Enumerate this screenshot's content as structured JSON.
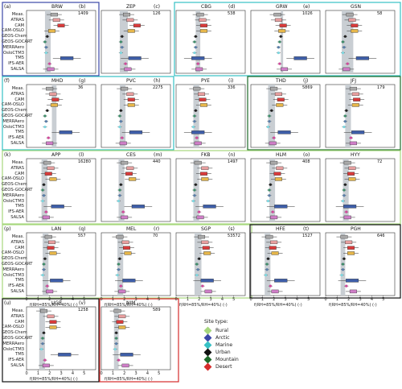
{
  "chart_data": {
    "type": "boxplot",
    "xlabel": "f(RH=85%/RH=40%)  (-)",
    "xlim": [
      0,
      6
    ],
    "xticks": [
      0,
      1,
      2,
      3,
      4,
      5
    ],
    "models": [
      "Meas.",
      "ATRAS",
      "CAM",
      "CAM-OSLO",
      "GEOS-Chem",
      "GEOS-GOCART",
      "MERRAero",
      "OsloCTM3",
      "TM5",
      "IFS-AER",
      "SALSA"
    ],
    "model_colors": [
      "#aaaaaa",
      "#e89f9f",
      "#d93b3b",
      "#e6b64a",
      "#222222",
      "#3f8c6a",
      "#5a7ea8",
      "#7fd6df",
      "#3e5ea8",
      "#cf4a9a",
      "#d07ec8"
    ],
    "panels": [
      {
        "id": "(a)",
        "site": "BRW",
        "n": "1409",
        "bands": [
          [
            1.6,
            2.1
          ]
        ],
        "medians": [
          2.4,
          2.6,
          3.0,
          2.2,
          1.8,
          1.6,
          1.7,
          1.7,
          3.5,
          2.0,
          2.1
        ]
      },
      {
        "id": "(b)",
        "site": "ZEP",
        "n": "126",
        "bands": [
          [
            1.6,
            2.3
          ]
        ],
        "medians": [
          2.2,
          2.5,
          3.1,
          2.6,
          1.8,
          1.7,
          1.8,
          1.7,
          2.9,
          2.1,
          2.3
        ]
      },
      {
        "id": "(c)",
        "site": "CBG",
        "n": "538",
        "bands": [
          [
            1.7,
            2.1
          ]
        ],
        "medians": [
          2.1,
          2.3,
          2.4,
          2.4,
          1.7,
          1.6,
          1.7,
          1.6,
          1.9,
          1.9,
          2.0
        ]
      },
      {
        "id": "(d)",
        "site": "GRW",
        "n": "1026",
        "bands": [
          [
            2.6,
            2.8
          ]
        ],
        "medians": [
          2.3,
          2.4,
          2.8,
          2.7,
          2.6,
          2.5,
          2.4,
          2.4,
          4.3,
          2.5,
          2.9
        ]
      },
      {
        "id": "(e)",
        "site": "GSN",
        "n": "58",
        "bands": [
          [
            1.4,
            2.4
          ]
        ],
        "medians": [
          2.1,
          2.3,
          2.5,
          2.5,
          1.7,
          1.5,
          1.6,
          1.5,
          3.2,
          1.9,
          1.8
        ]
      },
      {
        "id": "(f)",
        "site": "MHD",
        "n": "36",
        "bands": [
          [
            2.2,
            2.6
          ]
        ],
        "medians": [
          2.0,
          2.3,
          2.5,
          2.4,
          1.8,
          1.6,
          1.7,
          1.6,
          3.4,
          1.9,
          2.0
        ]
      },
      {
        "id": "(g)",
        "site": "PVC",
        "n": "2275",
        "bands": [
          [
            1.6,
            2.1
          ]
        ],
        "medians": [
          2.0,
          2.5,
          2.6,
          2.6,
          1.7,
          1.6,
          1.7,
          1.6,
          3.0,
          1.8,
          1.9
        ]
      },
      {
        "id": "(h)",
        "site": "PYE",
        "n": "336",
        "bands": [
          [
            1.5,
            2.0
          ]
        ],
        "medians": [
          1.8,
          2.2,
          2.3,
          2.4,
          1.7,
          1.6,
          1.6,
          1.5,
          1.9,
          1.8,
          1.9
        ]
      },
      {
        "id": "(i)",
        "site": "THD",
        "n": "5869",
        "bands": [
          [
            1.5,
            2.1
          ]
        ],
        "medians": [
          2.0,
          2.4,
          2.6,
          2.5,
          1.8,
          1.6,
          1.6,
          1.5,
          2.9,
          2.0,
          1.9
        ]
      },
      {
        "id": "(j)",
        "site": "JFJ",
        "n": "179",
        "bands": [
          [
            1.7,
            2.2
          ]
        ],
        "medians": [
          2.4,
          2.6,
          2.7,
          2.6,
          1.8,
          1.7,
          1.7,
          1.6,
          2.8,
          2.2,
          2.4
        ]
      },
      {
        "id": "(k)",
        "site": "APP",
        "n": "16280",
        "bands": [
          [
            1.3,
            1.8
          ]
        ],
        "medians": [
          1.8,
          2.1,
          1.9,
          2.3,
          1.5,
          1.4,
          1.5,
          1.4,
          2.7,
          1.7,
          1.7
        ]
      },
      {
        "id": "(l)",
        "site": "CES",
        "n": "440",
        "bands": [
          [
            1.5,
            2.0
          ]
        ],
        "medians": [
          2.0,
          2.5,
          2.4,
          2.7,
          1.7,
          1.6,
          1.6,
          1.5,
          3.2,
          1.9,
          2.0
        ]
      },
      {
        "id": "(m)",
        "site": "FKB",
        "n": "1497",
        "bands": [
          [
            1.5,
            2.0
          ]
        ],
        "medians": [
          1.9,
          2.5,
          2.4,
          2.5,
          1.7,
          1.6,
          1.6,
          1.5,
          2.9,
          2.0,
          2.1
        ]
      },
      {
        "id": "(n)",
        "site": "HLM",
        "n": "408",
        "bands": [
          [
            1.6,
            2.1
          ]
        ],
        "medians": [
          2.0,
          2.5,
          2.3,
          2.4,
          1.7,
          1.6,
          1.6,
          1.5,
          2.6,
          1.9,
          2.0
        ]
      },
      {
        "id": "(o)",
        "site": "HYY",
        "n": "72",
        "bands": [
          [
            1.5,
            2.0
          ]
        ],
        "medians": [
          1.9,
          2.3,
          2.2,
          2.3,
          1.7,
          1.6,
          1.6,
          1.5,
          2.1,
          1.8,
          1.9
        ]
      },
      {
        "id": "(p)",
        "site": "LAN",
        "n": "557",
        "bands": [
          [
            1.4,
            1.9
          ]
        ],
        "medians": [
          1.9,
          2.2,
          2.1,
          2.3,
          1.6,
          1.5,
          1.5,
          1.4,
          2.6,
          1.8,
          2.0
        ]
      },
      {
        "id": "(q)",
        "site": "MEL",
        "n": "70",
        "bands": [
          [
            1.4,
            1.9
          ]
        ],
        "medians": [
          1.6,
          2.1,
          2.2,
          2.3,
          1.6,
          1.5,
          1.5,
          1.4,
          2.4,
          1.7,
          1.8
        ]
      },
      {
        "id": "(r)",
        "site": "SGP",
        "n": "53572",
        "bands": [
          [
            1.6,
            2.2
          ]
        ],
        "medians": [
          2.2,
          2.5,
          2.6,
          2.7,
          2.0,
          1.8,
          1.9,
          1.8,
          2.7,
          2.3,
          2.8
        ]
      },
      {
        "id": "(s)",
        "site": "HFE",
        "n": "1527",
        "bands": [
          [
            1.2,
            1.7
          ]
        ],
        "medians": [
          1.6,
          2.0,
          1.9,
          2.1,
          1.5,
          1.4,
          1.4,
          1.3,
          2.6,
          1.7,
          2.1
        ]
      },
      {
        "id": "(t)",
        "site": "PGH",
        "n": "646",
        "bands": [
          [
            1.3,
            1.7
          ]
        ],
        "medians": [
          1.6,
          2.0,
          2.2,
          2.2,
          1.6,
          1.5,
          1.5,
          1.4,
          2.3,
          1.8,
          2.4
        ]
      },
      {
        "id": "(u)",
        "site": "UGR",
        "n": "1258",
        "bands": [
          [
            1.1,
            1.6
          ]
        ],
        "medians": [
          1.5,
          2.1,
          2.3,
          2.3,
          1.5,
          1.4,
          1.4,
          1.3,
          3.3,
          1.6,
          1.7
        ]
      },
      {
        "id": "(v)",
        "site": "NIM",
        "n": "589",
        "bands": [
          [
            1.1,
            1.5
          ]
        ],
        "medians": [
          1.4,
          1.8,
          1.6,
          1.8,
          1.3,
          1.3,
          1.3,
          1.2,
          2.2,
          1.5,
          2.1
        ]
      }
    ],
    "legend": {
      "title": "Site type:",
      "items": [
        {
          "label": "Rural",
          "color": "#a6d77d"
        },
        {
          "label": "Arctic",
          "color": "#3b48a8"
        },
        {
          "label": "Marine",
          "color": "#36c0c4"
        },
        {
          "label": "Urban",
          "color": "#111111"
        },
        {
          "label": "Mountain",
          "color": "#1f6b2a"
        },
        {
          "label": "Desert",
          "color": "#d62b2b"
        }
      ]
    },
    "frames": [
      {
        "type": "Arctic",
        "color": "#3b48a8"
      },
      {
        "type": "Marine",
        "color": "#36c0c4"
      },
      {
        "type": "Rural",
        "color": "#a6d77d"
      },
      {
        "type": "Mountain",
        "color": "#1f6b2a"
      },
      {
        "type": "Urban",
        "color": "#111111"
      },
      {
        "type": "Desert",
        "color": "#d62b2b"
      }
    ]
  }
}
